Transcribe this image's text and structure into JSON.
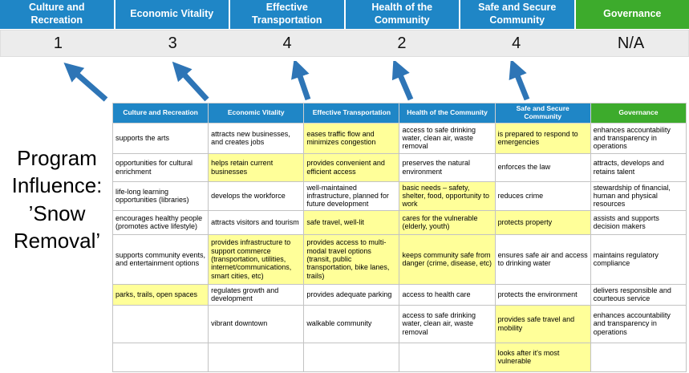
{
  "colors": {
    "header_blue": "#1f86c6",
    "governance_green": "#3dab2c",
    "highlight_yellow": "#ffff99",
    "arrow_blue": "#2e75b6",
    "score_band_gray": "#ececec"
  },
  "program_title": "Program Influence: ’Snow Removal’",
  "pillars": [
    {
      "label": "Culture and Recreation",
      "score": "1",
      "theme": "blue"
    },
    {
      "label": "Economic Vitality",
      "score": "3",
      "theme": "blue"
    },
    {
      "label": "Effective Transportation",
      "score": "4",
      "theme": "blue"
    },
    {
      "label": "Health of the Community",
      "score": "2",
      "theme": "blue"
    },
    {
      "label": "Safe and Secure Community",
      "score": "4",
      "theme": "blue"
    },
    {
      "label": "Governance",
      "score": "N/A",
      "theme": "green"
    }
  ],
  "matrix": {
    "rows": [
      [
        {
          "text": "supports the arts",
          "highlight": false
        },
        {
          "text": "attracts new businesses, and creates jobs",
          "highlight": false
        },
        {
          "text": "eases traffic flow and minimizes congestion",
          "highlight": true
        },
        {
          "text": "access to safe drinking water, clean air, waste removal",
          "highlight": false
        },
        {
          "text": "is prepared to respond to emergencies",
          "highlight": true
        },
        {
          "text": "enhances accountability and transparency in operations",
          "highlight": false
        }
      ],
      [
        {
          "text": "opportunities for cultural enrichment",
          "highlight": false
        },
        {
          "text": "helps retain current businesses",
          "highlight": true
        },
        {
          "text": "provides convenient and efficient access",
          "highlight": true
        },
        {
          "text": "preserves the natural environment",
          "highlight": false
        },
        {
          "text": "enforces the law",
          "highlight": false
        },
        {
          "text": "attracts, develops and retains talent",
          "highlight": false
        }
      ],
      [
        {
          "text": "life-long learning opportunities (libraries)",
          "highlight": false
        },
        {
          "text": "develops the workforce",
          "highlight": false
        },
        {
          "text": "well-maintained infrastructure, planned for future development",
          "highlight": false
        },
        {
          "text": "basic needs – safety, shelter, food, opportunity to work",
          "highlight": true
        },
        {
          "text": "reduces crime",
          "highlight": false
        },
        {
          "text": "stewardship of financial, human and physical resources",
          "highlight": false
        }
      ],
      [
        {
          "text": "encourages healthy people (promotes active lifestyle)",
          "highlight": false
        },
        {
          "text": "attracts visitors and tourism",
          "highlight": false
        },
        {
          "text": "safe travel, well-lit",
          "highlight": true
        },
        {
          "text": "cares for the vulnerable (elderly, youth)",
          "highlight": true
        },
        {
          "text": "protects property",
          "highlight": true
        },
        {
          "text": "assists and supports decision makers",
          "highlight": false
        }
      ],
      [
        {
          "text": "supports community events, and entertainment options",
          "highlight": false
        },
        {
          "text": "provides infrastructure to support commerce (transportation, utilities, internet/communications, smart cities, etc)",
          "highlight": true
        },
        {
          "text": "provides access to multi-modal travel options (transit, public transportation, bike lanes, trails)",
          "highlight": true
        },
        {
          "text": "keeps community safe from danger (crime, disease, etc)",
          "highlight": true
        },
        {
          "text": "ensures safe air and access to drinking water",
          "highlight": false
        },
        {
          "text": "maintains regulatory compliance",
          "highlight": false
        }
      ],
      [
        {
          "text": "parks, trails, open spaces",
          "highlight": true
        },
        {
          "text": "regulates growth and development",
          "highlight": false
        },
        {
          "text": "provides adequate parking",
          "highlight": false
        },
        {
          "text": "access to health care",
          "highlight": false
        },
        {
          "text": "protects the environment",
          "highlight": false
        },
        {
          "text": "delivers responsible and courteous service",
          "highlight": false
        }
      ],
      [
        {
          "text": "",
          "highlight": false
        },
        {
          "text": "vibrant downtown",
          "highlight": false
        },
        {
          "text": "walkable community",
          "highlight": false
        },
        {
          "text": "access to safe drinking water, clean air, waste removal",
          "highlight": false
        },
        {
          "text": "provides safe travel and mobility",
          "highlight": true
        },
        {
          "text": "enhances accountability and transparency in operations",
          "highlight": false
        }
      ],
      [
        {
          "text": "",
          "highlight": false
        },
        {
          "text": "",
          "highlight": false
        },
        {
          "text": "",
          "highlight": false
        },
        {
          "text": "",
          "highlight": false
        },
        {
          "text": "looks after it's most vulnerable",
          "highlight": true
        },
        {
          "text": "",
          "highlight": false
        }
      ]
    ]
  }
}
